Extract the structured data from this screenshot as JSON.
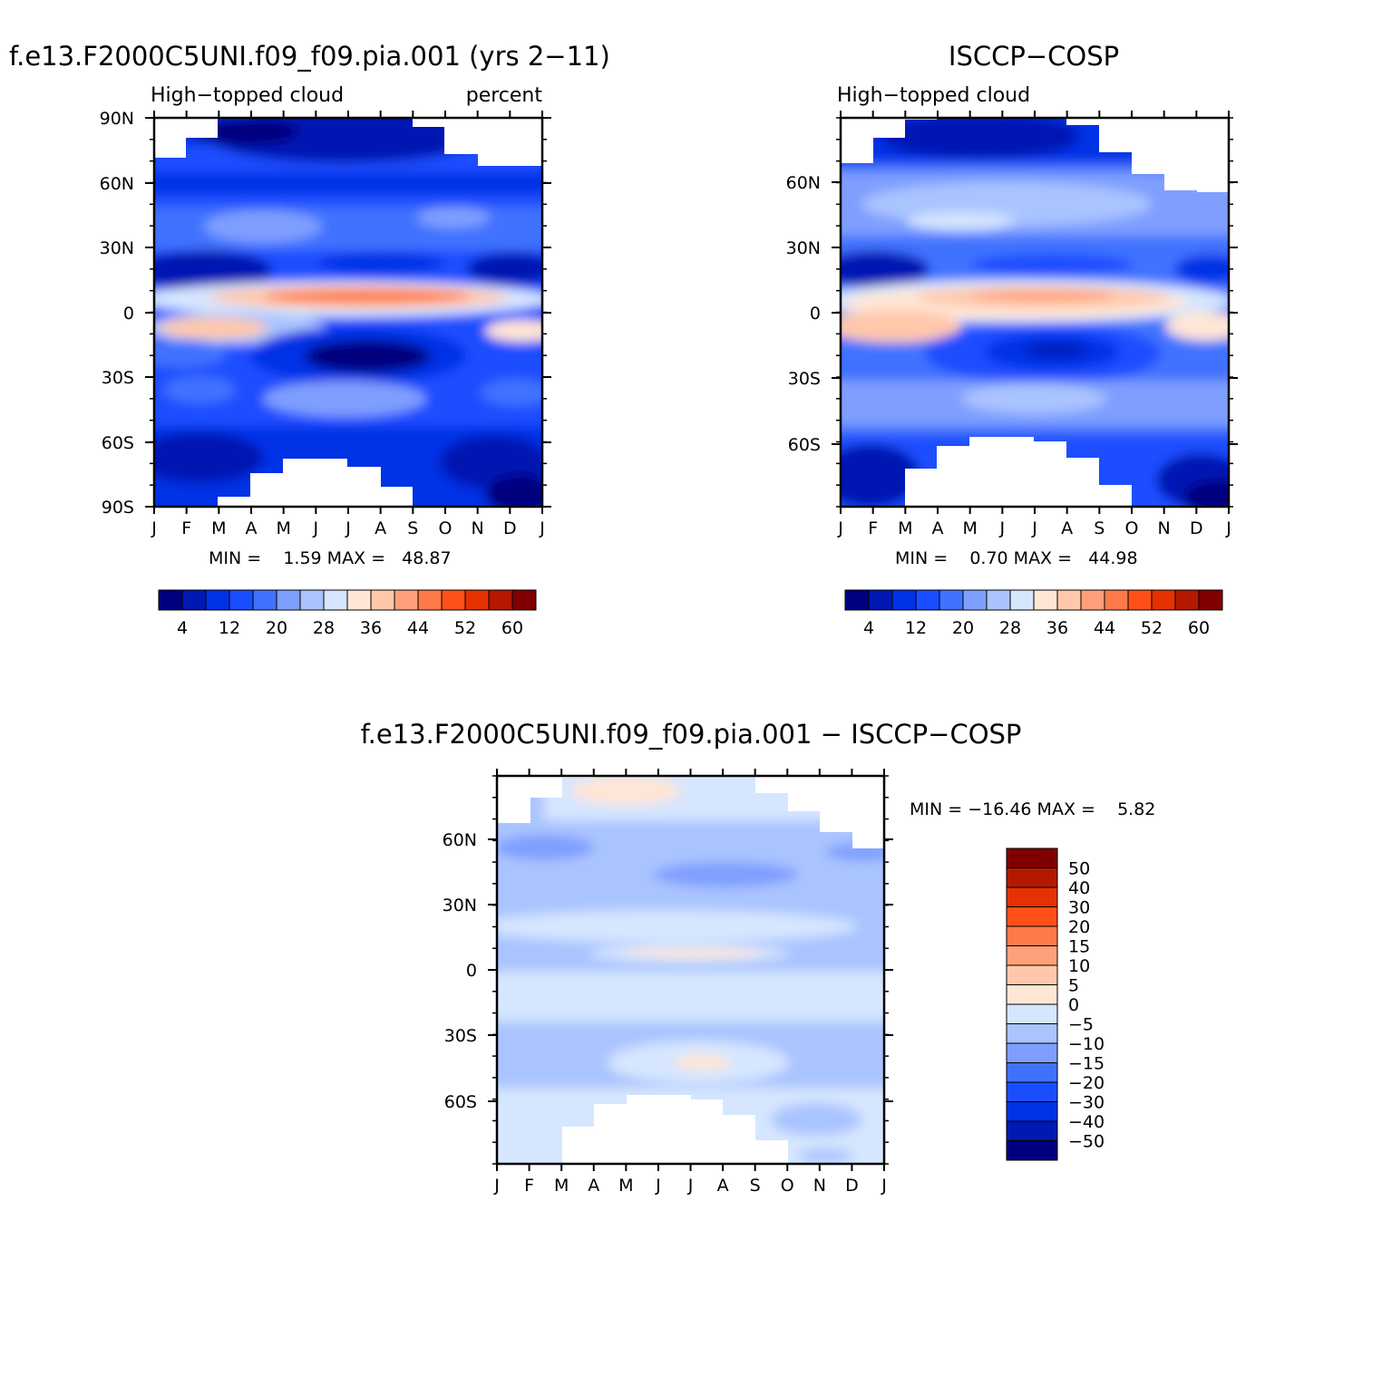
{
  "months": [
    "J",
    "F",
    "M",
    "A",
    "M",
    "J",
    "J",
    "A",
    "S",
    "O",
    "N",
    "D",
    "J"
  ],
  "lat_ticks_full": [
    "90N",
    "60N",
    "30N",
    "0",
    "30S",
    "60S",
    "90S"
  ],
  "lat_ticks_partial": [
    "60N",
    "30N",
    "0",
    "30S",
    "60S"
  ],
  "abs_palette": [
    "#00007f",
    "#0019b3",
    "#0033e6",
    "#1a4dff",
    "#3f72ff",
    "#7f9fff",
    "#aac4ff",
    "#d6e6ff",
    "#ffe6d5",
    "#ffc8aa",
    "#ffa07a",
    "#ff7a48",
    "#ff5019",
    "#e63200",
    "#b41900",
    "#7f0000"
  ],
  "abs_labels": [
    "4",
    "12",
    "20",
    "28",
    "36",
    "44",
    "52",
    "60"
  ],
  "diff_palette": [
    "#7f0000",
    "#b41900",
    "#e63200",
    "#ff5019",
    "#ff7a48",
    "#ffa07a",
    "#ffc8aa",
    "#ffe6d5",
    "#d6e6ff",
    "#aac4ff",
    "#7f9fff",
    "#3f72ff",
    "#1a4dff",
    "#0033e6",
    "#0019b3",
    "#00007f"
  ],
  "diff_labels": [
    "50",
    "40",
    "30",
    "20",
    "15",
    "10",
    "5",
    "0",
    "-5",
    "-10",
    "-15",
    "-20",
    "-30",
    "-40",
    "-50"
  ],
  "panel1": {
    "title": "f.e13.F2000C5UNI.f09_f09.pia.001 (yrs 2-11)",
    "left_label": "High-topped cloud",
    "right_label": "percent",
    "stats": "MIN =    1.59 MAX =   48.87"
  },
  "panel2": {
    "title": "ISCCP-COSP",
    "left_label": "High-topped cloud",
    "stats": "MIN =    0.70 MAX =   44.98"
  },
  "panel3": {
    "title": "f.e13.F2000C5UNI.f09_f09.pia.001 - ISCCP-COSP",
    "stats": "MIN = -16.46 MAX =    5.82"
  },
  "chart_data": [
    {
      "type": "heatmap",
      "title": "f.e13.F2000C5UNI.f09_f09.pia.001 (yrs 2-11)",
      "variable": "High-topped cloud",
      "units": "percent",
      "x_categories": [
        "J",
        "F",
        "M",
        "A",
        "M",
        "J",
        "J",
        "A",
        "S",
        "O",
        "N",
        "D",
        "J"
      ],
      "y_ticks": [
        "90N",
        "60N",
        "30N",
        "0",
        "30S",
        "60S",
        "90S"
      ],
      "min": 1.59,
      "max": 48.87,
      "color_levels": [
        4,
        8,
        12,
        16,
        20,
        24,
        28,
        32,
        36,
        40,
        44,
        48,
        52,
        56,
        60
      ]
    },
    {
      "type": "heatmap",
      "title": "ISCCP-COSP",
      "variable": "High-topped cloud",
      "x_categories": [
        "J",
        "F",
        "M",
        "A",
        "M",
        "J",
        "J",
        "A",
        "S",
        "O",
        "N",
        "D",
        "J"
      ],
      "y_ticks": [
        "60N",
        "30N",
        "0",
        "30S",
        "60S"
      ],
      "min": 0.7,
      "max": 44.98,
      "color_levels": [
        4,
        8,
        12,
        16,
        20,
        24,
        28,
        32,
        36,
        40,
        44,
        48,
        52,
        56,
        60
      ]
    },
    {
      "type": "heatmap",
      "title": "f.e13.F2000C5UNI.f09_f09.pia.001 - ISCCP-COSP",
      "x_categories": [
        "J",
        "F",
        "M",
        "A",
        "M",
        "J",
        "J",
        "A",
        "S",
        "O",
        "N",
        "D",
        "J"
      ],
      "y_ticks": [
        "60N",
        "30N",
        "0",
        "30S",
        "60S"
      ],
      "min": -16.46,
      "max": 5.82,
      "color_levels": [
        -50,
        -40,
        -30,
        -20,
        -15,
        -10,
        -5,
        0,
        5,
        10,
        15,
        20,
        30,
        40,
        50
      ]
    }
  ]
}
